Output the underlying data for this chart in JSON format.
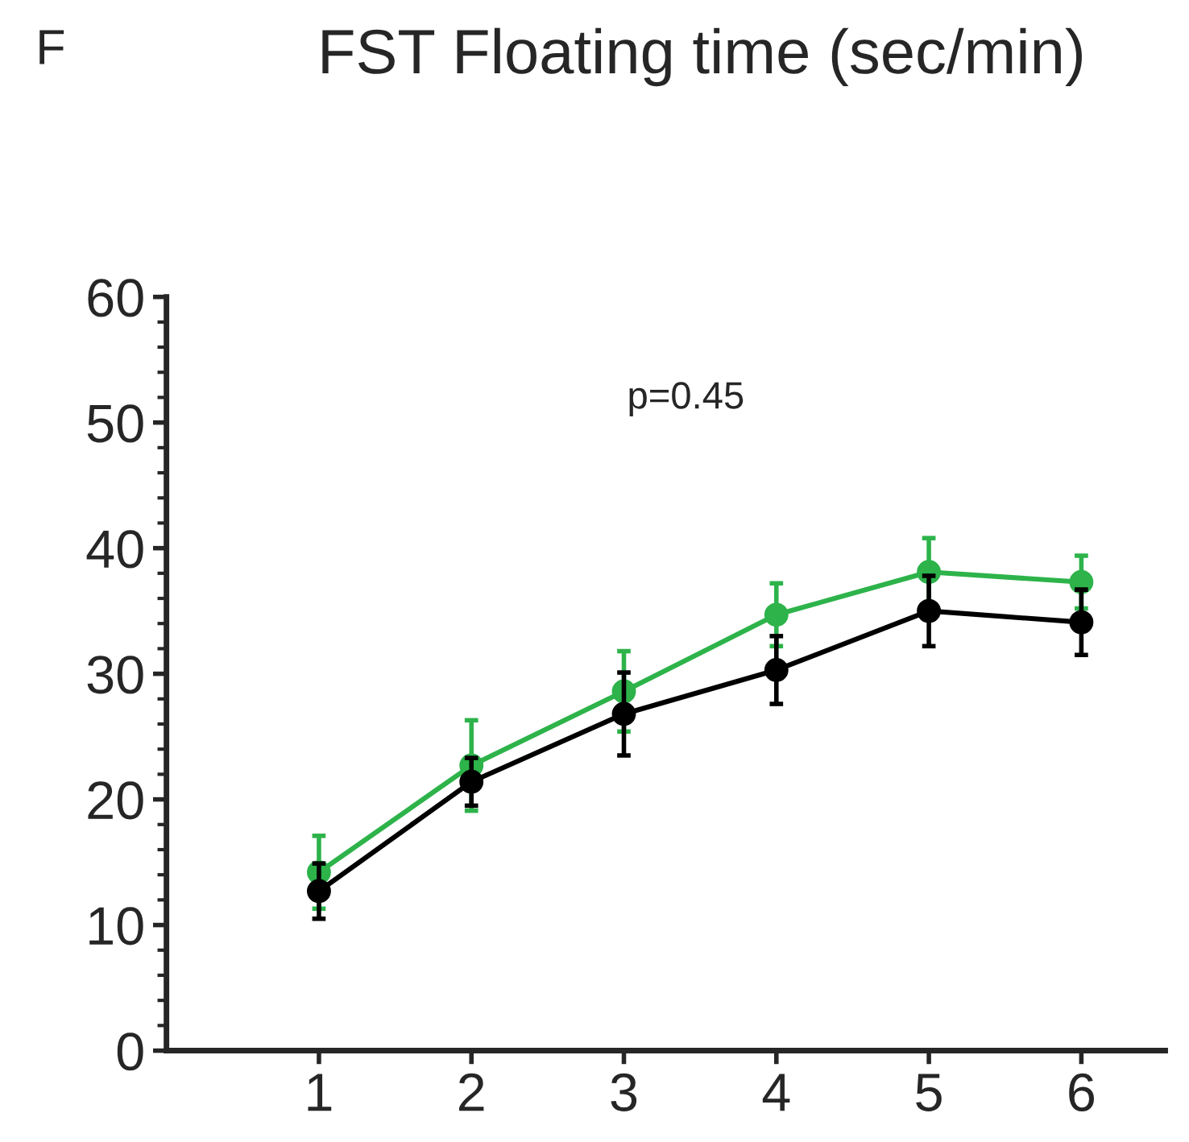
{
  "chart_data": {
    "type": "line",
    "title": "FST Floating time (sec/min)",
    "annotations": [
      "F",
      "p=0.45"
    ],
    "x": [
      1,
      2,
      3,
      4,
      5,
      6
    ],
    "series": [
      {
        "color": "#2db34a",
        "values": [
          14.2,
          22.7,
          28.6,
          34.7,
          38.1,
          37.3
        ],
        "errors": [
          2.9,
          3.6,
          3.2,
          2.5,
          2.7,
          2.1
        ]
      },
      {
        "color": "#000000",
        "values": [
          12.7,
          21.4,
          26.8,
          30.3,
          35.0,
          34.1
        ],
        "errors": [
          2.2,
          1.9,
          3.3,
          2.7,
          2.8,
          2.6
        ]
      }
    ],
    "xlim": [
      0,
      6.55
    ],
    "xticks": [
      1,
      2,
      3,
      4,
      5,
      6
    ],
    "ylim": [
      0,
      60
    ],
    "yticks": [
      0,
      10,
      20,
      30,
      40,
      50,
      60
    ],
    "marker": "circle",
    "line_style": "solid"
  }
}
